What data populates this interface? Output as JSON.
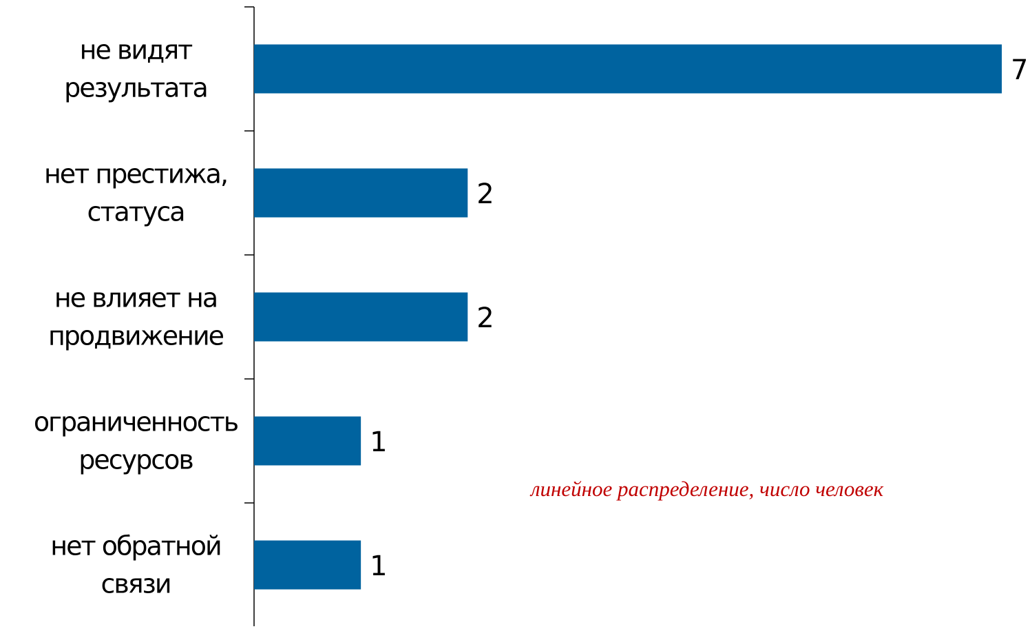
{
  "chart_data": {
    "type": "bar",
    "orientation": "horizontal",
    "categories": [
      [
        "не видят",
        "результата"
      ],
      [
        "нет престижа,",
        "статуса"
      ],
      [
        "не влияет на",
        "продвижение"
      ],
      [
        "ограниченность",
        "ресурсов"
      ],
      [
        "нет обратной",
        "связи"
      ]
    ],
    "values": [
      7,
      2,
      2,
      1,
      1
    ],
    "xlim": [
      0,
      7
    ],
    "grid": false,
    "legend": "none",
    "bar_color": "#00639F",
    "data_labels": true,
    "annotation": "линейное распределение, число человек"
  },
  "colors": {
    "bar": "#00639F",
    "annotation": "#C00000",
    "axis": "#000000"
  }
}
